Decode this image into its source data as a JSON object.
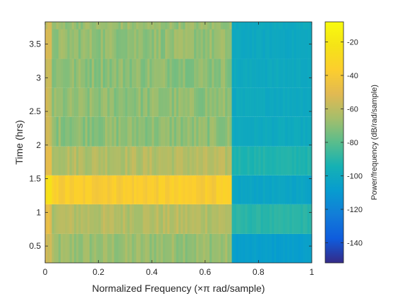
{
  "chart_data": {
    "type": "heatmap",
    "title": "",
    "xlabel": "Normalized Frequency  (×π rad/sample)",
    "ylabel": "Time (hrs)",
    "colorbar_label": "Power/frequency (dB/rad/sample)",
    "colormap": "parula",
    "xlim": [
      0,
      1
    ],
    "ylim": [
      0.25,
      3.83
    ],
    "clim": [
      -152,
      -8
    ],
    "x_ticks": [
      0,
      0.2,
      0.4,
      0.6,
      0.8,
      1
    ],
    "x_tick_labels": [
      "0",
      "0.2",
      "0.4",
      "0.6",
      "0.8",
      "1"
    ],
    "y_ticks": [
      0.5,
      1,
      1.5,
      2,
      2.5,
      3,
      3.5
    ],
    "y_tick_labels": [
      "0.5",
      "1",
      "1.5",
      "2",
      "2.5",
      "3",
      "3.5"
    ],
    "colorbar_ticks": [
      -140,
      -120,
      -100,
      -80,
      -60,
      -40,
      -20
    ],
    "colorbar_tick_labels": [
      "-140",
      "-120",
      "-100",
      "-80",
      "-60",
      "-40",
      "-20"
    ],
    "cutoff_frequency": 0.7,
    "time_bins": [
      {
        "t0": 0.25,
        "t1": 0.68,
        "low_band_db": -68,
        "high_band_db": -107
      },
      {
        "t0": 0.68,
        "t1": 1.12,
        "low_band_db": -62,
        "high_band_db": -90
      },
      {
        "t0": 1.12,
        "t1": 1.55,
        "low_band_db": -38,
        "high_band_db": -103
      },
      {
        "t0": 1.55,
        "t1": 1.98,
        "low_band_db": -62,
        "high_band_db": -92
      },
      {
        "t0": 1.98,
        "t1": 2.42,
        "low_band_db": -70,
        "high_band_db": -100
      },
      {
        "t0": 2.42,
        "t1": 2.85,
        "low_band_db": -70,
        "high_band_db": -100
      },
      {
        "t0": 2.85,
        "t1": 3.28,
        "low_band_db": -70,
        "high_band_db": -100
      },
      {
        "t0": 3.28,
        "t1": 3.72,
        "low_band_db": -69,
        "high_band_db": -101
      },
      {
        "t0": 3.72,
        "t1": 3.83,
        "low_band_db": -68,
        "high_band_db": -100
      }
    ]
  }
}
